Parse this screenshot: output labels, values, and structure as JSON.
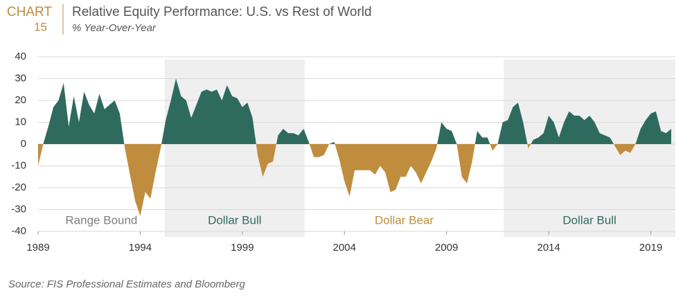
{
  "chart_data": {
    "type": "area",
    "chart_label": "CHART",
    "chart_number": "15",
    "title": "Relative Equity Performance: U.S. vs Rest of World",
    "subtitle": "% Year-Over-Year",
    "source": "Source: FIS Professional Estimates and Bloomberg",
    "positive_color": "#2e6b5e",
    "negative_color": "#c08d3e",
    "grid": true,
    "xlim": [
      1989,
      2020.2
    ],
    "ylim": [
      -40,
      40
    ],
    "xticks": [
      1989,
      1994,
      1999,
      2004,
      2009,
      2014,
      2019
    ],
    "yticks": [
      -40,
      -30,
      -20,
      -10,
      0,
      10,
      20,
      30,
      40
    ],
    "regions": [
      {
        "label": "Range Bound",
        "start": 1989,
        "end": 1995.2,
        "shaded": false,
        "color": "#7f7f7f"
      },
      {
        "label": "Dollar Bull",
        "start": 1995.2,
        "end": 2002.05,
        "shaded": true,
        "color": "#2e6b5e"
      },
      {
        "label": "Dollar Bear",
        "start": 2002.05,
        "end": 2011.8,
        "shaded": false,
        "color": "#c08d3e"
      },
      {
        "label": "Dollar Bull",
        "start": 2011.8,
        "end": 2020.2,
        "shaded": true,
        "color": "#2e6b5e"
      }
    ],
    "x": [
      1989,
      1989.25,
      1989.5,
      1989.75,
      1990,
      1990.25,
      1990.5,
      1990.75,
      1991,
      1991.25,
      1991.5,
      1991.75,
      1992,
      1992.25,
      1992.5,
      1992.75,
      1993,
      1993.25,
      1993.5,
      1993.75,
      1994,
      1994.25,
      1994.5,
      1994.75,
      1995,
      1995.25,
      1995.5,
      1995.75,
      1996,
      1996.25,
      1996.5,
      1996.75,
      1997,
      1997.25,
      1997.5,
      1997.75,
      1998,
      1998.25,
      1998.5,
      1998.75,
      1999,
      1999.25,
      1999.5,
      1999.75,
      2000,
      2000.25,
      2000.5,
      2000.75,
      2001,
      2001.25,
      2001.5,
      2001.75,
      2002,
      2002.25,
      2002.5,
      2002.75,
      2003,
      2003.25,
      2003.5,
      2003.75,
      2004,
      2004.25,
      2004.5,
      2004.75,
      2005,
      2005.25,
      2005.5,
      2005.75,
      2006,
      2006.25,
      2006.5,
      2006.75,
      2007,
      2007.25,
      2007.5,
      2007.75,
      2008,
      2008.25,
      2008.5,
      2008.75,
      2009,
      2009.25,
      2009.5,
      2009.75,
      2010,
      2010.25,
      2010.5,
      2010.75,
      2011,
      2011.25,
      2011.5,
      2011.75,
      2012,
      2012.25,
      2012.5,
      2012.75,
      2013,
      2013.25,
      2013.5,
      2013.75,
      2014,
      2014.25,
      2014.5,
      2014.75,
      2015,
      2015.25,
      2015.5,
      2015.75,
      2016,
      2016.25,
      2016.5,
      2016.75,
      2017,
      2017.25,
      2017.5,
      2017.75,
      2018,
      2018.25,
      2018.5,
      2018.75,
      2019,
      2019.25,
      2019.5,
      2019.75,
      2020
    ],
    "values": [
      -10,
      0,
      8,
      17,
      20,
      28,
      8,
      22,
      10,
      24,
      18,
      14,
      23,
      16,
      18,
      20,
      14,
      -2,
      -14,
      -26,
      -33,
      -22,
      -25,
      -13,
      -2,
      11,
      20,
      30,
      22,
      20,
      12,
      18,
      24,
      25,
      24,
      25,
      20,
      27,
      22,
      21,
      17,
      19,
      12,
      -5,
      -15,
      -9,
      -8,
      4,
      7,
      5,
      5,
      4,
      7,
      1,
      -6,
      -6,
      -5,
      0,
      1,
      -7,
      -17,
      -24,
      -12,
      -12,
      -12,
      -12,
      -14,
      -10,
      -13,
      -22,
      -21,
      -15,
      -15,
      -10,
      -13,
      -18,
      -13,
      -8,
      -2,
      10,
      7,
      6,
      0,
      -15,
      -18,
      -8,
      6,
      3,
      3,
      -3,
      0,
      10,
      11,
      17,
      19,
      10,
      -2,
      2,
      3,
      5,
      13,
      10,
      3,
      10,
      15,
      13,
      13,
      11,
      13,
      10,
      5,
      4,
      3,
      -1,
      -5,
      -3,
      -4,
      0,
      7,
      11,
      14,
      15,
      6,
      5,
      7
    ]
  }
}
